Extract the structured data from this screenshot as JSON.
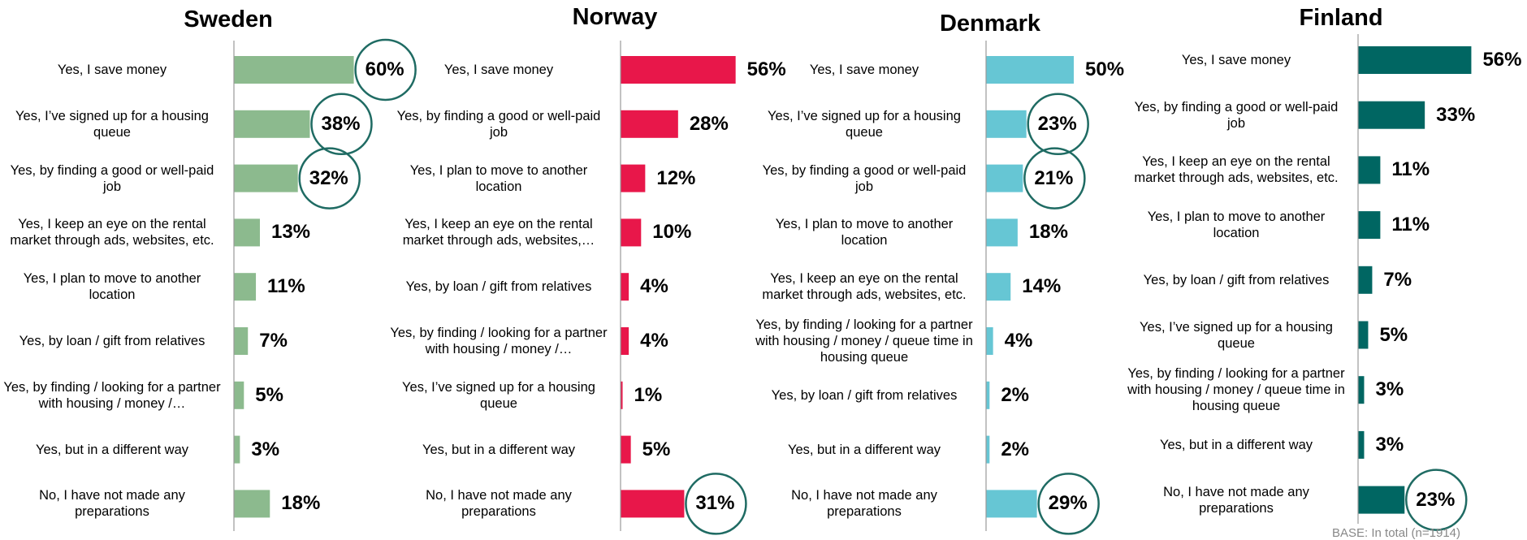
{
  "chart_data": [
    {
      "type": "bar",
      "orientation": "horizontal",
      "title": "Sweden",
      "color": "#8cba8e",
      "categories": [
        "Yes, I save money",
        "Yes, I’ve signed up for a housing queue",
        "Yes, by finding a good or well-paid job",
        "Yes, I keep an eye on the rental market through ads, websites, etc.",
        "Yes, I plan to move to another location",
        "Yes, by loan / gift from relatives",
        "Yes, by finding / looking for a partner with housing / money /…",
        "Yes, but in a different way",
        "No, I have not made any preparations"
      ],
      "values": [
        60,
        38,
        32,
        13,
        11,
        7,
        5,
        3,
        18
      ],
      "value_labels": [
        "60%",
        "38%",
        "32%",
        "13%",
        "11%",
        "7%",
        "5%",
        "3%",
        "18%"
      ],
      "highlight": [
        0,
        1,
        2
      ]
    },
    {
      "type": "bar",
      "orientation": "horizontal",
      "title": "Norway",
      "color": "#e8174a",
      "categories": [
        "Yes, I save money",
        "Yes, by finding a good or well-paid job",
        "Yes, I plan to move to another location",
        "Yes, I keep an eye on the rental market through ads, websites,…",
        "Yes, by loan / gift from relatives",
        "Yes, by finding / looking for a partner with housing / money /…",
        "Yes, I’ve signed up for a housing queue",
        "Yes, but in a different way",
        "No, I have not made any preparations"
      ],
      "values": [
        56,
        28,
        12,
        10,
        4,
        4,
        1,
        5,
        31
      ],
      "value_labels": [
        "56%",
        "28%",
        "12%",
        "10%",
        "4%",
        "4%",
        "1%",
        "5%",
        "31%"
      ],
      "highlight": [
        8
      ]
    },
    {
      "type": "bar",
      "orientation": "horizontal",
      "title": "Denmark",
      "color": "#66c6d4",
      "categories": [
        "Yes, I save money",
        "Yes, I’ve signed up for a housing queue",
        "Yes, by finding a good or well-paid job",
        "Yes, I plan to move to another location",
        "Yes, I keep an eye on the rental market through ads, websites, etc.",
        "Yes, by finding / looking for a partner with housing / money / queue time in housing queue",
        "Yes, by loan / gift from relatives",
        "Yes, but in a different way",
        "No, I have not made any preparations"
      ],
      "values": [
        50,
        23,
        21,
        18,
        14,
        4,
        2,
        2,
        29
      ],
      "value_labels": [
        "50%",
        "23%",
        "21%",
        "18%",
        "14%",
        "4%",
        "2%",
        "2%",
        "29%"
      ],
      "highlight": [
        1,
        2,
        8
      ]
    },
    {
      "type": "bar",
      "orientation": "horizontal",
      "title": "Finland",
      "color": "#006662",
      "categories": [
        "Yes, I save money",
        "Yes, by finding a good or well-paid job",
        "Yes, I keep an eye on the rental market through ads, websites, etc.",
        "Yes, I plan to move to another location",
        "Yes, by loan / gift from relatives",
        "Yes, I’ve signed up for a housing queue",
        "Yes, by finding / looking for a partner with housing / money / queue time in housing queue",
        "Yes, but in a different way",
        "No, I have not made any preparations"
      ],
      "values": [
        56,
        33,
        11,
        11,
        7,
        5,
        3,
        3,
        23
      ],
      "value_labels": [
        "56%",
        "33%",
        "11%",
        "11%",
        "7%",
        "5%",
        "3%",
        "3%",
        "23%"
      ],
      "highlight": [
        8
      ]
    }
  ],
  "footnote": "BASE: In total (n=1914)"
}
